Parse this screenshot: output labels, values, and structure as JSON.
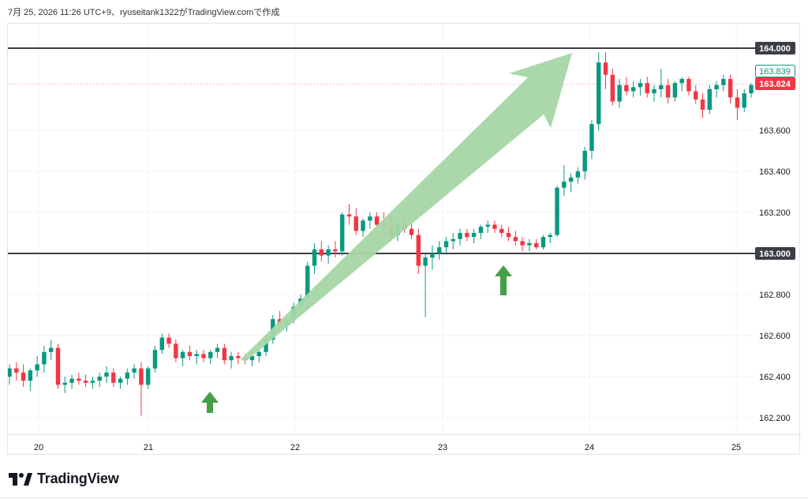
{
  "header": {
    "attribution": "7月 25, 2026 11:26 UTC+9、ryuseitank1322がTradingView.comで作成"
  },
  "branding": {
    "name": "TradingView"
  },
  "colors": {
    "up": "#089981",
    "down": "#f23645",
    "grid": "#f0f3fa",
    "level_line": "#3b3e45",
    "arrow": "#a5d6a7",
    "pointer": "#43a047",
    "axis_text": "#131722"
  },
  "chart_data": {
    "type": "candlestick",
    "title": "",
    "xlabel": "",
    "ylabel": "",
    "ylim": [
      162.1,
      164.1
    ],
    "y_ticks": [
      "164.000",
      "163.600",
      "163.400",
      "163.200",
      "163.000",
      "162.800",
      "162.600",
      "162.400",
      "162.200"
    ],
    "x_ticks": [
      "20",
      "21",
      "22",
      "23",
      "24",
      "25"
    ],
    "grid": true,
    "horizontal_levels": [
      {
        "value": 164.0,
        "label": "164.000"
      },
      {
        "value": 163.0,
        "label": "163.000"
      }
    ],
    "price_labels": [
      {
        "value": 163.839,
        "label": "163.839",
        "style": "outline"
      },
      {
        "value": 163.824,
        "label": "163.824",
        "style": "filled"
      }
    ],
    "candles": [
      [
        162.4,
        162.46,
        162.36,
        162.44
      ],
      [
        162.44,
        162.47,
        162.38,
        162.42
      ],
      [
        162.42,
        162.46,
        162.35,
        162.38
      ],
      [
        162.38,
        162.44,
        162.33,
        162.43
      ],
      [
        162.43,
        162.5,
        162.4,
        162.46
      ],
      [
        162.46,
        162.55,
        162.42,
        162.52
      ],
      [
        162.52,
        162.58,
        162.48,
        162.54
      ],
      [
        162.54,
        162.56,
        162.34,
        162.36
      ],
      [
        162.36,
        162.4,
        162.32,
        162.37
      ],
      [
        162.37,
        162.41,
        162.34,
        162.39
      ],
      [
        162.39,
        162.42,
        162.36,
        162.38
      ],
      [
        162.38,
        162.41,
        162.35,
        162.37
      ],
      [
        162.37,
        162.4,
        162.34,
        162.38
      ],
      [
        162.38,
        162.42,
        162.35,
        162.4
      ],
      [
        162.4,
        162.45,
        162.37,
        162.42
      ],
      [
        162.42,
        162.44,
        162.35,
        162.37
      ],
      [
        162.37,
        162.4,
        162.34,
        162.39
      ],
      [
        162.39,
        162.44,
        162.36,
        162.42
      ],
      [
        162.42,
        162.46,
        162.39,
        162.44
      ],
      [
        162.44,
        162.47,
        162.21,
        162.36
      ],
      [
        162.36,
        162.45,
        162.34,
        162.44
      ],
      [
        162.44,
        162.55,
        162.42,
        162.53
      ],
      [
        162.53,
        162.61,
        162.51,
        162.59
      ],
      [
        162.59,
        162.61,
        162.54,
        162.56
      ],
      [
        162.56,
        162.58,
        162.47,
        162.49
      ],
      [
        162.49,
        162.53,
        162.45,
        162.52
      ],
      [
        162.52,
        162.55,
        162.48,
        162.5
      ],
      [
        162.5,
        162.53,
        162.46,
        162.51
      ],
      [
        162.51,
        162.53,
        162.47,
        162.49
      ],
      [
        162.49,
        162.53,
        162.46,
        162.52
      ],
      [
        162.52,
        162.56,
        162.49,
        162.54
      ],
      [
        162.54,
        162.56,
        162.46,
        162.48
      ],
      [
        162.48,
        162.52,
        162.44,
        162.5
      ],
      [
        162.5,
        162.52,
        162.46,
        162.49
      ],
      [
        162.49,
        162.51,
        162.46,
        162.48
      ],
      [
        162.48,
        162.51,
        162.45,
        162.5
      ],
      [
        162.5,
        162.53,
        162.47,
        162.52
      ],
      [
        162.52,
        162.6,
        162.5,
        162.58
      ],
      [
        162.58,
        162.7,
        162.56,
        162.68
      ],
      [
        162.68,
        162.72,
        162.63,
        162.65
      ],
      [
        162.65,
        162.7,
        162.62,
        162.68
      ],
      [
        162.68,
        162.76,
        162.66,
        162.74
      ],
      [
        162.74,
        162.8,
        162.7,
        162.78
      ],
      [
        162.78,
        162.96,
        162.76,
        162.94
      ],
      [
        162.94,
        163.05,
        162.9,
        163.02
      ],
      [
        163.02,
        163.06,
        162.96,
        162.99
      ],
      [
        162.99,
        163.04,
        162.95,
        163.02
      ],
      [
        163.02,
        163.06,
        162.98,
        163.01
      ],
      [
        163.01,
        163.2,
        162.99,
        163.19
      ],
      [
        163.19,
        163.24,
        163.14,
        163.18
      ],
      [
        163.18,
        163.22,
        163.09,
        163.11
      ],
      [
        163.11,
        163.17,
        163.08,
        163.16
      ],
      [
        163.16,
        163.2,
        163.12,
        163.18
      ],
      [
        163.18,
        163.2,
        163.13,
        163.14
      ],
      [
        163.14,
        163.2,
        163.07,
        163.13
      ],
      [
        163.13,
        163.19,
        163.06,
        163.09
      ],
      [
        163.09,
        163.16,
        163.06,
        163.14
      ],
      [
        163.14,
        163.18,
        163.1,
        163.12
      ],
      [
        163.12,
        163.15,
        163.07,
        163.09
      ],
      [
        163.09,
        163.12,
        162.9,
        162.94
      ],
      [
        162.94,
        163.0,
        162.69,
        162.98
      ],
      [
        162.98,
        163.04,
        162.92,
        163.0
      ],
      [
        163.0,
        163.06,
        162.97,
        163.03
      ],
      [
        163.03,
        163.08,
        163.0,
        163.06
      ],
      [
        163.06,
        163.1,
        163.02,
        163.07
      ],
      [
        163.07,
        163.12,
        163.04,
        163.1
      ],
      [
        163.1,
        163.12,
        163.06,
        163.08
      ],
      [
        163.08,
        163.12,
        163.05,
        163.1
      ],
      [
        163.1,
        163.14,
        163.07,
        163.13
      ],
      [
        163.13,
        163.16,
        163.1,
        163.14
      ],
      [
        163.14,
        163.16,
        163.1,
        163.12
      ],
      [
        163.12,
        163.14,
        163.08,
        163.1
      ],
      [
        163.1,
        163.13,
        163.06,
        163.08
      ],
      [
        163.08,
        163.11,
        163.04,
        163.06
      ],
      [
        163.06,
        163.08,
        163.01,
        163.04
      ],
      [
        163.04,
        163.07,
        163.01,
        163.05
      ],
      [
        163.05,
        163.07,
        163.02,
        163.03
      ],
      [
        163.03,
        163.09,
        163.02,
        163.08
      ],
      [
        163.08,
        163.1,
        163.05,
        163.09
      ],
      [
        163.09,
        163.33,
        163.08,
        163.32
      ],
      [
        163.32,
        163.43,
        163.28,
        163.35
      ],
      [
        163.35,
        163.39,
        163.3,
        163.37
      ],
      [
        163.37,
        163.42,
        163.34,
        163.4
      ],
      [
        163.4,
        163.52,
        163.36,
        163.5
      ],
      [
        163.5,
        163.65,
        163.46,
        163.63
      ],
      [
        163.63,
        163.98,
        163.6,
        163.93
      ],
      [
        163.93,
        163.98,
        163.8,
        163.87
      ],
      [
        163.87,
        163.9,
        163.72,
        163.74
      ],
      [
        163.74,
        163.85,
        163.71,
        163.82
      ],
      [
        163.82,
        163.86,
        163.77,
        163.79
      ],
      [
        163.79,
        163.84,
        163.76,
        163.81
      ],
      [
        163.81,
        163.85,
        163.77,
        163.83
      ],
      [
        163.83,
        163.86,
        163.76,
        163.78
      ],
      [
        163.78,
        163.82,
        163.74,
        163.8
      ],
      [
        163.8,
        163.9,
        163.76,
        163.82
      ],
      [
        163.82,
        163.85,
        163.73,
        163.76
      ],
      [
        163.76,
        163.84,
        163.74,
        163.83
      ],
      [
        163.83,
        163.86,
        163.79,
        163.85
      ],
      [
        163.85,
        163.86,
        163.77,
        163.79
      ],
      [
        163.79,
        163.82,
        163.73,
        163.75
      ],
      [
        163.75,
        163.78,
        163.66,
        163.7
      ],
      [
        163.7,
        163.82,
        163.68,
        163.8
      ],
      [
        163.8,
        163.84,
        163.76,
        163.82
      ],
      [
        163.82,
        163.87,
        163.79,
        163.85
      ],
      [
        163.85,
        163.87,
        163.73,
        163.76
      ],
      [
        163.76,
        163.8,
        163.65,
        163.71
      ],
      [
        163.71,
        163.8,
        163.69,
        163.78
      ],
      [
        163.78,
        163.83,
        163.76,
        163.82
      ]
    ]
  }
}
